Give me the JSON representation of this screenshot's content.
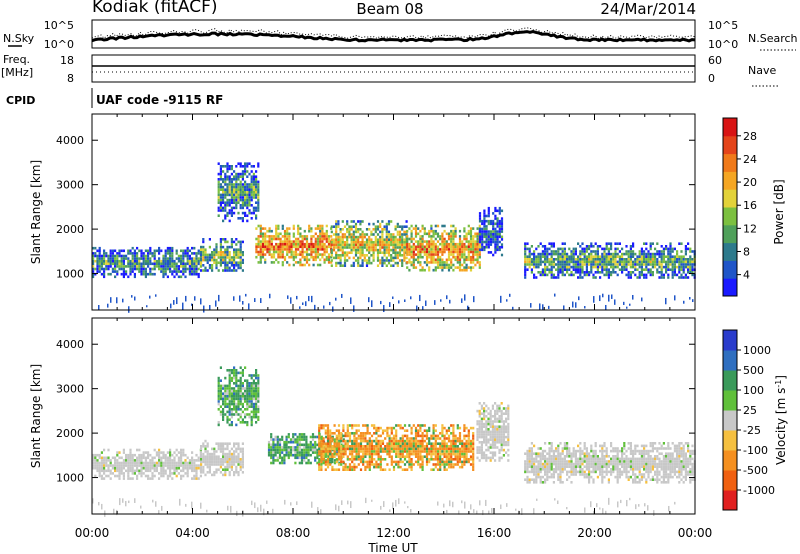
{
  "header": {
    "station": "Kodiak (fitACF)",
    "beam": "Beam 08",
    "date": "24/Mar/2014"
  },
  "noise_panel": {
    "left_label": "N.Sky",
    "right_label": "N.Search",
    "left_ticks": [
      "10^5",
      "10^0"
    ],
    "right_ticks": [
      "10^5",
      "10^0"
    ]
  },
  "freq_panel": {
    "left_label_1": "Freq.",
    "left_label_2": "[MHz]",
    "right_label": "Nave",
    "left_ticks": [
      "18",
      "8"
    ],
    "right_ticks": [
      "60",
      "0"
    ]
  },
  "cpid": {
    "label": "CPID",
    "value": "UAF code -9115 RF"
  },
  "x_axis": {
    "label": "Time UT",
    "ticks": [
      "00:00",
      "04:00",
      "08:00",
      "12:00",
      "16:00",
      "20:00",
      "00:00"
    ]
  },
  "chart_data": [
    {
      "type": "heatmap",
      "name": "power",
      "ylabel": "Slant Range [km]",
      "yticks": [
        1000,
        2000,
        3000,
        4000
      ],
      "ylim": [
        180,
        4590
      ],
      "xlim_hours": [
        0,
        24
      ],
      "colorbar": {
        "label": "Power [dB]",
        "ticks": [
          "4",
          "8",
          "12",
          "16",
          "20",
          "24",
          "28"
        ],
        "colors": [
          "#1a1aff",
          "#1f55c8",
          "#2d7a8c",
          "#4fa05a",
          "#7cc040",
          "#e2d23a",
          "#f5a623",
          "#f07a1a",
          "#e4441a",
          "#d81414"
        ]
      },
      "echo_regions": [
        {
          "t0": 0.0,
          "t1": 4.3,
          "r0": 950,
          "r1": 1600,
          "level": 0.35
        },
        {
          "t0": 4.3,
          "t1": 6.0,
          "r0": 1050,
          "r1": 1800,
          "level": 0.45
        },
        {
          "t0": 5.0,
          "t1": 6.6,
          "r0": 2200,
          "r1": 3500,
          "level": 0.35
        },
        {
          "t0": 6.5,
          "t1": 9.5,
          "r0": 1200,
          "r1": 2100,
          "level": 0.75
        },
        {
          "t0": 9.5,
          "t1": 12.5,
          "r0": 1150,
          "r1": 2200,
          "level": 0.6
        },
        {
          "t0": 12.5,
          "t1": 15.4,
          "r0": 1050,
          "r1": 2100,
          "level": 0.7
        },
        {
          "t0": 15.4,
          "t1": 16.3,
          "r0": 1400,
          "r1": 2500,
          "level": 0.25
        },
        {
          "t0": 17.2,
          "t1": 24.0,
          "r0": 900,
          "r1": 1700,
          "level": 0.4
        }
      ]
    },
    {
      "type": "heatmap",
      "name": "velocity",
      "ylabel": "Slant Range [km]",
      "yticks": [
        1000,
        2000,
        3000,
        4000
      ],
      "ylim": [
        180,
        4590
      ],
      "xlim_hours": [
        0,
        24
      ],
      "colorbar": {
        "label": "Velocity [m s^-1]",
        "ticks": [
          "1000",
          "500",
          "100",
          "25",
          "-25",
          "-100",
          "-500",
          "-1000"
        ],
        "colors": [
          "#2a3ccc",
          "#2f6fc0",
          "#3a9a5a",
          "#60c03a",
          "#c8c8c8",
          "#f5c040",
          "#f59020",
          "#f06010",
          "#e02020"
        ]
      },
      "echo_regions": [
        {
          "t0": 0.0,
          "t1": 4.3,
          "r0": 950,
          "r1": 1650,
          "class": "ground"
        },
        {
          "t0": 4.3,
          "t1": 6.0,
          "r0": 1050,
          "r1": 1850,
          "class": "ground"
        },
        {
          "t0": 5.0,
          "t1": 6.6,
          "r0": 2200,
          "r1": 3500,
          "class": "positive"
        },
        {
          "t0": 7.0,
          "t1": 10.0,
          "r0": 1300,
          "r1": 2000,
          "class": "positive"
        },
        {
          "t0": 9.0,
          "t1": 15.2,
          "r0": 1150,
          "r1": 2200,
          "class": "negative"
        },
        {
          "t0": 15.3,
          "t1": 16.6,
          "r0": 1400,
          "r1": 2700,
          "class": "ground"
        },
        {
          "t0": 17.2,
          "t1": 24.0,
          "r0": 900,
          "r1": 1800,
          "class": "ground"
        }
      ]
    }
  ]
}
